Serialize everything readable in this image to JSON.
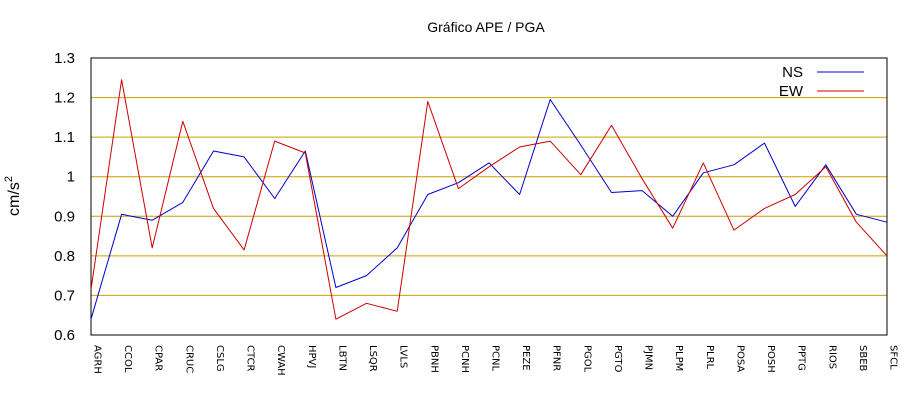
{
  "chart_data": {
    "type": "line",
    "title": "Gráfico  APE / PGA",
    "xlabel": "",
    "ylabel": "cm/s",
    "ylabel_superscript": "2",
    "ylim": [
      0.6,
      1.3
    ],
    "yticks": [
      "0.6",
      "0.7",
      "0.8",
      "0.9",
      "1",
      "1.1",
      "1.2",
      "1.3"
    ],
    "grid": true,
    "legend_position": "top-right",
    "categories": [
      "AGRH",
      "CCOL",
      "CPAR",
      "CRUC",
      "CSLG",
      "CTCR",
      "CWAH",
      "HPVJ",
      "LBTN",
      "LSQR",
      "LVLS",
      "PBNH",
      "PCNH",
      "PCNL",
      "PEZE",
      "PFNR",
      "PGOL",
      "PGTO",
      "PJMN",
      "PLPM",
      "PLRL",
      "POSA",
      "POSH",
      "PPTG",
      "RIOS",
      "SBEB",
      "SFCL"
    ],
    "series": [
      {
        "name": "NS",
        "color": "#0000cc",
        "values": [
          0.64,
          0.905,
          0.89,
          0.935,
          1.065,
          1.05,
          0.945,
          1.065,
          0.72,
          0.75,
          0.82,
          0.955,
          0.985,
          1.035,
          0.955,
          1.195,
          1.08,
          0.96,
          0.965,
          0.9,
          1.01,
          1.03,
          1.085,
          0.925,
          1.03,
          0.905,
          0.885
        ]
      },
      {
        "name": "EW",
        "color": "#cc0000",
        "values": [
          0.715,
          1.245,
          0.82,
          1.14,
          0.92,
          0.815,
          1.09,
          1.06,
          0.64,
          0.68,
          0.66,
          1.19,
          0.97,
          1.025,
          1.075,
          1.09,
          1.005,
          1.13,
          0.995,
          0.87,
          1.035,
          0.865,
          0.92,
          0.955,
          1.025,
          0.885,
          0.8
        ]
      }
    ],
    "colors": {
      "grid": "#c8a000",
      "frame": "#000000"
    }
  }
}
